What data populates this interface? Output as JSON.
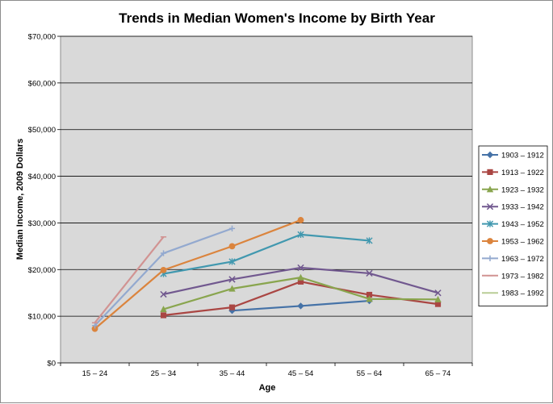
{
  "chart_data": {
    "type": "line",
    "title": "Trends in Median Women's Income by Birth Year",
    "xlabel": "Age",
    "ylabel": "Median Income, 2009 Dollars",
    "categories": [
      "15 – 24",
      "25 – 34",
      "35 – 44",
      "45 – 54",
      "55 – 64",
      "65 – 74"
    ],
    "ylim": [
      0,
      70000
    ],
    "yticks": [
      0,
      10000,
      20000,
      30000,
      40000,
      50000,
      60000,
      70000
    ],
    "ytick_labels": [
      "$0",
      "$10,000",
      "$20,000",
      "$30,000",
      "$40,000",
      "$50,000",
      "$60,000",
      "$70,000"
    ],
    "grid": "horizontal",
    "legend_position": "right",
    "plot_background": "#d9d9d9",
    "series": [
      {
        "name": "1903 – 1912",
        "color": "#4572a7",
        "marker": "diamond",
        "values": [
          null,
          null,
          11200,
          12200,
          13300,
          null
        ]
      },
      {
        "name": "1913 – 1922",
        "color": "#aa4643",
        "marker": "square",
        "values": [
          null,
          10200,
          11900,
          17400,
          14600,
          12600
        ]
      },
      {
        "name": "1923 – 1932",
        "color": "#89a54e",
        "marker": "triangle",
        "values": [
          null,
          11500,
          15900,
          18300,
          13700,
          13600
        ]
      },
      {
        "name": "1933 – 1942",
        "color": "#71588f",
        "marker": "x",
        "values": [
          null,
          14700,
          17900,
          20400,
          19200,
          15000
        ]
      },
      {
        "name": "1943 – 1952",
        "color": "#4198af",
        "marker": "star",
        "values": [
          null,
          19100,
          21700,
          27500,
          26200,
          null
        ]
      },
      {
        "name": "1953 – 1962",
        "color": "#db843d",
        "marker": "circle",
        "values": [
          7300,
          19900,
          25000,
          30600,
          null,
          null
        ]
      },
      {
        "name": "1963 – 1972",
        "color": "#93a9cf",
        "marker": "plus",
        "values": [
          8000,
          23500,
          28800,
          null,
          null,
          null
        ]
      },
      {
        "name": "1973 – 1982",
        "color": "#d19392",
        "marker": "dash",
        "values": [
          8600,
          27000,
          null,
          null,
          null,
          null
        ]
      },
      {
        "name": "1983 – 1992",
        "color": "#b9cd96",
        "marker": "none",
        "values": [
          9200,
          null,
          null,
          null,
          null,
          null
        ]
      }
    ]
  }
}
